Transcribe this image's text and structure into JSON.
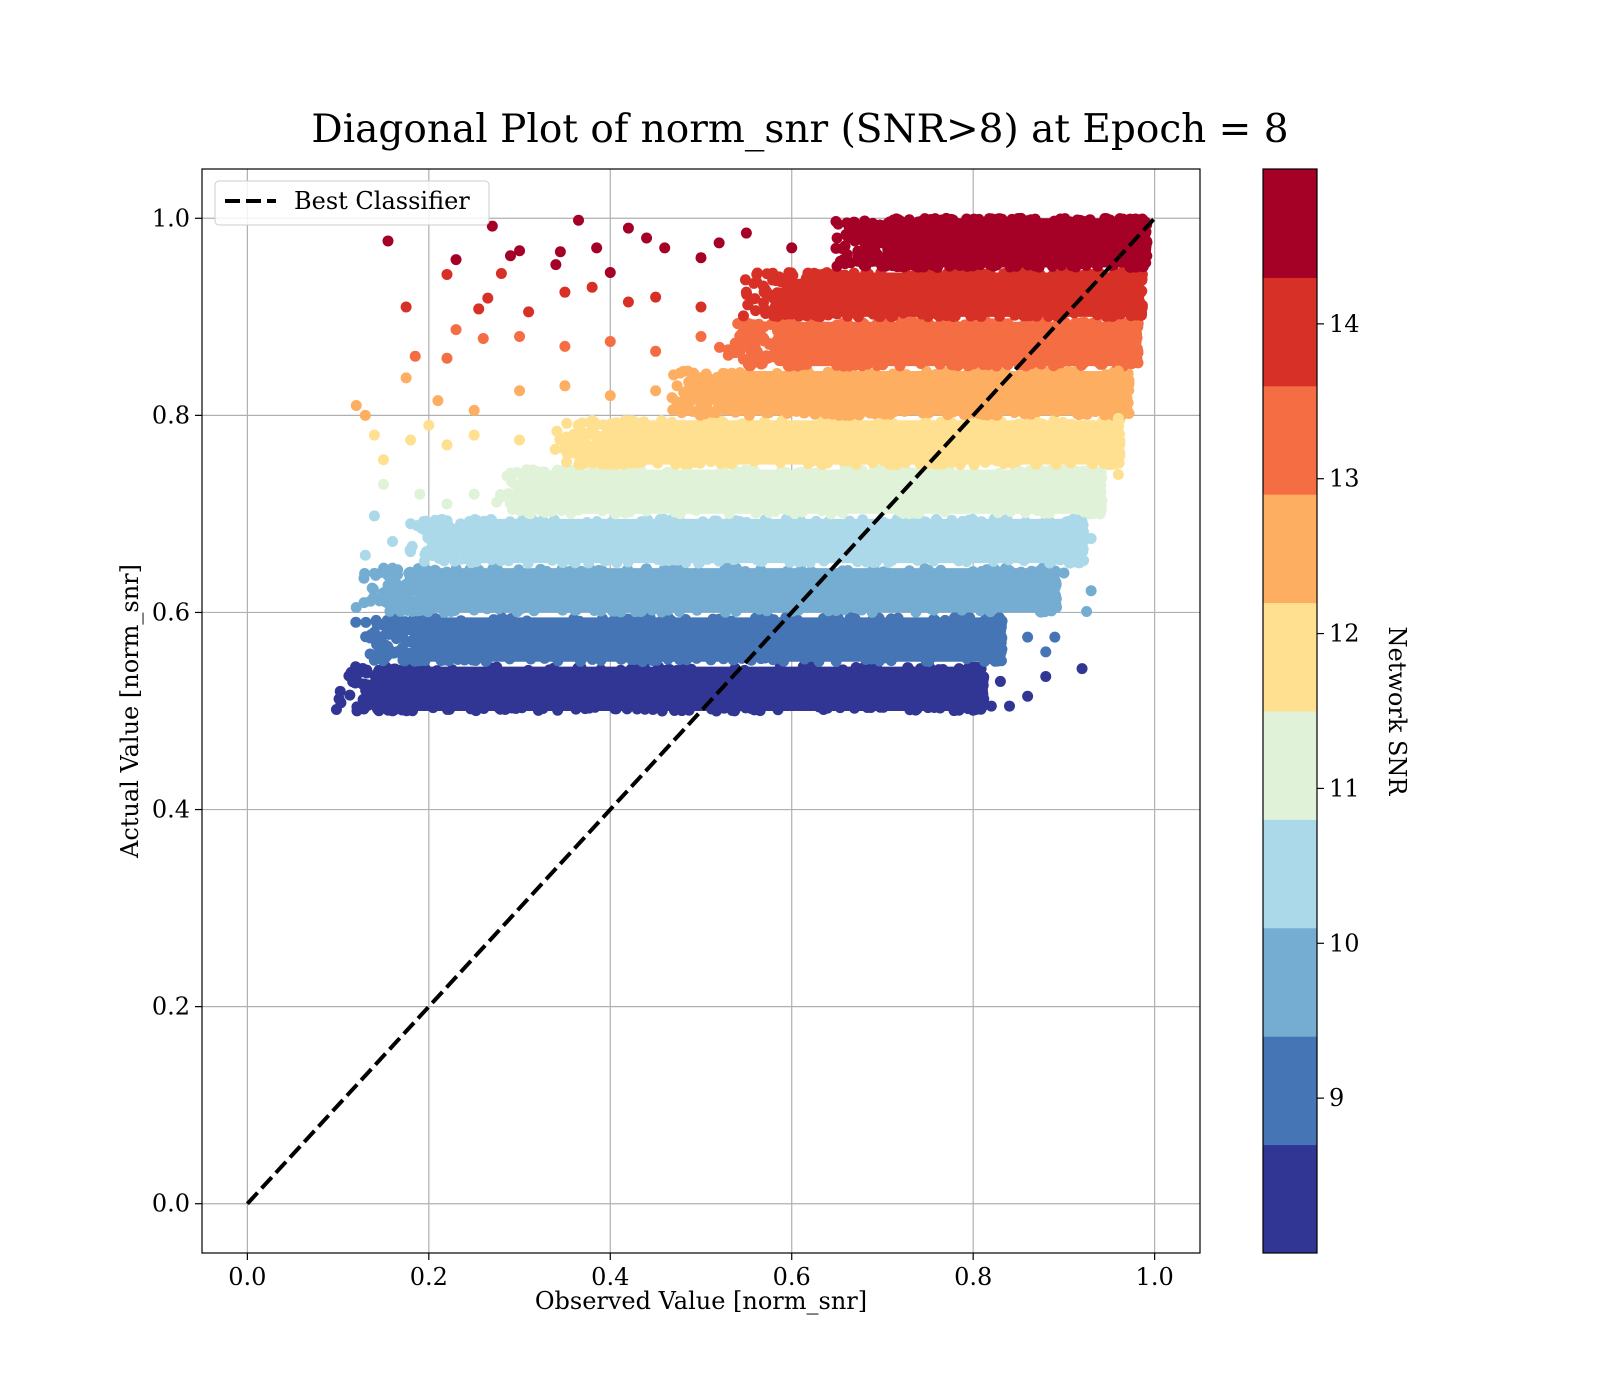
{
  "chart_data": {
    "type": "scatter",
    "title": "Diagonal Plot of norm_snr (SNR>8) at Epoch = 8",
    "xlabel": "Observed Value [norm_snr]",
    "ylabel": "Actual Value [norm_snr]",
    "xlim": [
      -0.05,
      1.05
    ],
    "ylim": [
      -0.05,
      1.05
    ],
    "x_ticks": [
      "0.0",
      "0.2",
      "0.4",
      "0.6",
      "0.8",
      "1.0"
    ],
    "y_ticks": [
      "0.0",
      "0.2",
      "0.4",
      "0.6",
      "0.8",
      "1.0"
    ],
    "grid": true,
    "legend": {
      "placement": "upper-left",
      "entries": [
        "Best Classifier"
      ]
    },
    "reference_line": {
      "name": "Best Classifier",
      "x": [
        0.0,
        1.0
      ],
      "y": [
        0.0,
        1.0
      ],
      "style": "dashed",
      "color": "#000000"
    },
    "colorbar": {
      "label": "Network SNR",
      "range": [
        8,
        15
      ],
      "tick_labels": [
        "9",
        "10",
        "11",
        "12",
        "13",
        "14"
      ],
      "tick_values": [
        9,
        10,
        11,
        12,
        13,
        14
      ],
      "bins": [
        {
          "snr_min": 8.0,
          "snr_max": 8.7,
          "color": "#313695"
        },
        {
          "snr_min": 8.7,
          "snr_max": 9.4,
          "color": "#4575b4"
        },
        {
          "snr_min": 9.4,
          "snr_max": 10.1,
          "color": "#74add1"
        },
        {
          "snr_min": 10.1,
          "snr_max": 10.8,
          "color": "#abd9e9"
        },
        {
          "snr_min": 10.8,
          "snr_max": 11.5,
          "color": "#e0f3d8"
        },
        {
          "snr_min": 11.5,
          "snr_max": 12.2,
          "color": "#fee090"
        },
        {
          "snr_min": 12.2,
          "snr_max": 12.9,
          "color": "#fdae61"
        },
        {
          "snr_min": 12.9,
          "snr_max": 13.6,
          "color": "#f46d43"
        },
        {
          "snr_min": 13.6,
          "snr_max": 14.3,
          "color": "#d73027"
        },
        {
          "snr_min": 14.3,
          "snr_max": 15.0,
          "color": "#a50026"
        }
      ]
    },
    "series": [
      {
        "color_band": "actual 0.50–0.55 (SNR 8.0–8.7)",
        "color": "#313695",
        "points": [
          [
            0.12,
            0.535
          ],
          [
            0.13,
            0.508
          ],
          [
            0.14,
            0.52
          ],
          [
            0.16,
            0.53
          ],
          [
            0.18,
            0.51
          ],
          [
            0.2,
            0.525
          ],
          [
            0.25,
            0.515
          ],
          [
            0.3,
            0.52
          ],
          [
            0.35,
            0.51
          ],
          [
            0.4,
            0.525
          ],
          [
            0.45,
            0.52
          ],
          [
            0.5,
            0.515
          ],
          [
            0.55,
            0.52
          ],
          [
            0.6,
            0.51
          ],
          [
            0.65,
            0.525
          ],
          [
            0.7,
            0.52
          ],
          [
            0.75,
            0.51
          ],
          [
            0.8,
            0.52
          ],
          [
            0.82,
            0.505
          ],
          [
            0.83,
            0.53
          ],
          [
            0.84,
            0.505
          ],
          [
            0.86,
            0.515
          ],
          [
            0.88,
            0.535
          ],
          [
            0.92,
            0.543
          ]
        ]
      },
      {
        "color_band": "actual 0.55–0.60 (SNR 8.7–9.4)",
        "color": "#4575b4",
        "points": [
          [
            0.14,
            0.58
          ],
          [
            0.15,
            0.56
          ],
          [
            0.17,
            0.59
          ],
          [
            0.2,
            0.57
          ],
          [
            0.25,
            0.575
          ],
          [
            0.3,
            0.565
          ],
          [
            0.35,
            0.58
          ],
          [
            0.4,
            0.57
          ],
          [
            0.45,
            0.575
          ],
          [
            0.5,
            0.565
          ],
          [
            0.55,
            0.58
          ],
          [
            0.6,
            0.57
          ],
          [
            0.65,
            0.575
          ],
          [
            0.7,
            0.565
          ],
          [
            0.75,
            0.58
          ],
          [
            0.8,
            0.57
          ],
          [
            0.83,
            0.565
          ],
          [
            0.86,
            0.575
          ],
          [
            0.88,
            0.56
          ],
          [
            0.89,
            0.575
          ]
        ]
      },
      {
        "color_band": "actual 0.60–0.65 (SNR 9.4–10.1)",
        "color": "#74add1",
        "points": [
          [
            0.12,
            0.605
          ],
          [
            0.15,
            0.62
          ],
          [
            0.16,
            0.645
          ],
          [
            0.2,
            0.63
          ],
          [
            0.25,
            0.62
          ],
          [
            0.3,
            0.625
          ],
          [
            0.35,
            0.63
          ],
          [
            0.4,
            0.62
          ],
          [
            0.45,
            0.625
          ],
          [
            0.5,
            0.615
          ],
          [
            0.55,
            0.63
          ],
          [
            0.6,
            0.62
          ],
          [
            0.65,
            0.625
          ],
          [
            0.7,
            0.615
          ],
          [
            0.75,
            0.63
          ],
          [
            0.8,
            0.62
          ],
          [
            0.85,
            0.625
          ],
          [
            0.88,
            0.63
          ],
          [
            0.9,
            0.64
          ],
          [
            0.93,
            0.622
          ],
          [
            0.925,
            0.601
          ]
        ]
      },
      {
        "color_band": "actual 0.65–0.70 (SNR 10.1–10.8)",
        "color": "#abd9e9",
        "points": [
          [
            0.13,
            0.658
          ],
          [
            0.14,
            0.698
          ],
          [
            0.16,
            0.672
          ],
          [
            0.18,
            0.69
          ],
          [
            0.2,
            0.675
          ],
          [
            0.25,
            0.67
          ],
          [
            0.3,
            0.68
          ],
          [
            0.35,
            0.67
          ],
          [
            0.4,
            0.675
          ],
          [
            0.45,
            0.665
          ],
          [
            0.5,
            0.68
          ],
          [
            0.55,
            0.67
          ],
          [
            0.6,
            0.675
          ],
          [
            0.65,
            0.665
          ],
          [
            0.7,
            0.68
          ],
          [
            0.75,
            0.67
          ],
          [
            0.8,
            0.675
          ],
          [
            0.85,
            0.665
          ],
          [
            0.9,
            0.68
          ],
          [
            0.93,
            0.675
          ]
        ]
      },
      {
        "color_band": "actual 0.70–0.75 (SNR 10.8–11.5)",
        "color": "#e0f3d8",
        "points": [
          [
            0.15,
            0.73
          ],
          [
            0.19,
            0.72
          ],
          [
            0.22,
            0.71
          ],
          [
            0.25,
            0.72
          ],
          [
            0.3,
            0.725
          ],
          [
            0.35,
            0.715
          ],
          [
            0.4,
            0.73
          ],
          [
            0.45,
            0.72
          ],
          [
            0.5,
            0.725
          ],
          [
            0.55,
            0.715
          ],
          [
            0.6,
            0.73
          ],
          [
            0.65,
            0.72
          ],
          [
            0.7,
            0.725
          ],
          [
            0.75,
            0.715
          ],
          [
            0.8,
            0.73
          ],
          [
            0.85,
            0.72
          ],
          [
            0.9,
            0.725
          ],
          [
            0.93,
            0.715
          ],
          [
            0.94,
            0.7
          ]
        ]
      },
      {
        "color_band": "actual 0.75–0.80 (SNR 11.5–12.2)",
        "color": "#fee090",
        "points": [
          [
            0.14,
            0.78
          ],
          [
            0.15,
            0.755
          ],
          [
            0.18,
            0.775
          ],
          [
            0.2,
            0.79
          ],
          [
            0.22,
            0.77
          ],
          [
            0.25,
            0.78
          ],
          [
            0.3,
            0.775
          ],
          [
            0.35,
            0.765
          ],
          [
            0.4,
            0.78
          ],
          [
            0.45,
            0.77
          ],
          [
            0.5,
            0.775
          ],
          [
            0.55,
            0.765
          ],
          [
            0.6,
            0.78
          ],
          [
            0.65,
            0.77
          ],
          [
            0.7,
            0.775
          ],
          [
            0.75,
            0.765
          ],
          [
            0.8,
            0.78
          ],
          [
            0.85,
            0.77
          ],
          [
            0.9,
            0.775
          ],
          [
            0.95,
            0.75
          ],
          [
            0.96,
            0.74
          ],
          [
            0.96,
            0.797
          ]
        ]
      },
      {
        "color_band": "actual 0.80–0.85 (SNR 12.2–12.9)",
        "color": "#fdae61",
        "points": [
          [
            0.12,
            0.81
          ],
          [
            0.13,
            0.8
          ],
          [
            0.175,
            0.838
          ],
          [
            0.21,
            0.815
          ],
          [
            0.25,
            0.805
          ],
          [
            0.3,
            0.825
          ],
          [
            0.35,
            0.83
          ],
          [
            0.4,
            0.82
          ],
          [
            0.45,
            0.825
          ],
          [
            0.5,
            0.815
          ],
          [
            0.55,
            0.83
          ],
          [
            0.6,
            0.82
          ],
          [
            0.65,
            0.825
          ],
          [
            0.7,
            0.815
          ],
          [
            0.75,
            0.83
          ],
          [
            0.8,
            0.82
          ],
          [
            0.85,
            0.825
          ],
          [
            0.9,
            0.815
          ],
          [
            0.95,
            0.83
          ],
          [
            0.96,
            0.845
          ]
        ]
      },
      {
        "color_band": "actual 0.85–0.90 (SNR 12.9–13.6)",
        "color": "#f46d43",
        "points": [
          [
            0.185,
            0.86
          ],
          [
            0.22,
            0.858
          ],
          [
            0.23,
            0.887
          ],
          [
            0.26,
            0.878
          ],
          [
            0.3,
            0.88
          ],
          [
            0.35,
            0.87
          ],
          [
            0.4,
            0.875
          ],
          [
            0.45,
            0.865
          ],
          [
            0.5,
            0.88
          ],
          [
            0.55,
            0.87
          ],
          [
            0.6,
            0.875
          ],
          [
            0.65,
            0.865
          ],
          [
            0.7,
            0.88
          ],
          [
            0.75,
            0.87
          ],
          [
            0.8,
            0.875
          ],
          [
            0.85,
            0.865
          ],
          [
            0.9,
            0.88
          ],
          [
            0.95,
            0.87
          ],
          [
            0.97,
            0.87
          ]
        ]
      },
      {
        "color_band": "actual 0.90–0.95 (SNR 13.6–14.3)",
        "color": "#d73027",
        "points": [
          [
            0.175,
            0.91
          ],
          [
            0.22,
            0.943
          ],
          [
            0.255,
            0.908
          ],
          [
            0.265,
            0.919
          ],
          [
            0.28,
            0.944
          ],
          [
            0.31,
            0.905
          ],
          [
            0.35,
            0.925
          ],
          [
            0.38,
            0.93
          ],
          [
            0.42,
            0.915
          ],
          [
            0.45,
            0.92
          ],
          [
            0.5,
            0.91
          ],
          [
            0.55,
            0.925
          ],
          [
            0.6,
            0.92
          ],
          [
            0.65,
            0.91
          ],
          [
            0.7,
            0.925
          ],
          [
            0.75,
            0.92
          ],
          [
            0.8,
            0.915
          ],
          [
            0.85,
            0.925
          ],
          [
            0.9,
            0.92
          ],
          [
            0.95,
            0.91
          ],
          [
            0.975,
            0.93
          ]
        ]
      },
      {
        "color_band": "actual 0.95–1.00 (SNR 14.3–15.0)",
        "color": "#a50026",
        "points": [
          [
            0.155,
            0.977
          ],
          [
            0.23,
            0.958
          ],
          [
            0.27,
            0.992
          ],
          [
            0.29,
            0.962
          ],
          [
            0.3,
            0.967
          ],
          [
            0.34,
            0.953
          ],
          [
            0.345,
            0.966
          ],
          [
            0.365,
            0.998
          ],
          [
            0.385,
            0.97
          ],
          [
            0.4,
            0.945
          ],
          [
            0.42,
            0.99
          ],
          [
            0.44,
            0.98
          ],
          [
            0.46,
            0.97
          ],
          [
            0.5,
            0.96
          ],
          [
            0.52,
            0.975
          ],
          [
            0.55,
            0.985
          ],
          [
            0.6,
            0.97
          ],
          [
            0.65,
            0.98
          ],
          [
            0.7,
            0.975
          ],
          [
            0.75,
            0.985
          ],
          [
            0.8,
            0.97
          ],
          [
            0.85,
            0.98
          ],
          [
            0.9,
            0.99
          ],
          [
            0.95,
            0.985
          ],
          [
            0.98,
            0.995
          ]
        ]
      }
    ],
    "dense_regions": [
      {
        "color": "#313695",
        "x_min": 0.16,
        "x_max": 0.8,
        "y_min": 0.5,
        "y_max": 0.545
      },
      {
        "color": "#4575b4",
        "x_min": 0.18,
        "x_max": 0.82,
        "y_min": 0.55,
        "y_max": 0.595
      },
      {
        "color": "#74add1",
        "x_min": 0.19,
        "x_max": 0.88,
        "y_min": 0.6,
        "y_max": 0.645
      },
      {
        "color": "#abd9e9",
        "x_min": 0.24,
        "x_max": 0.91,
        "y_min": 0.65,
        "y_max": 0.695
      },
      {
        "color": "#e0f3d8",
        "x_min": 0.33,
        "x_max": 0.93,
        "y_min": 0.7,
        "y_max": 0.745
      },
      {
        "color": "#fee090",
        "x_min": 0.4,
        "x_max": 0.95,
        "y_min": 0.75,
        "y_max": 0.795
      },
      {
        "color": "#fdae61",
        "x_min": 0.52,
        "x_max": 0.96,
        "y_min": 0.8,
        "y_max": 0.845
      },
      {
        "color": "#f46d43",
        "x_min": 0.58,
        "x_max": 0.97,
        "y_min": 0.85,
        "y_max": 0.895
      },
      {
        "color": "#d73027",
        "x_min": 0.61,
        "x_max": 0.975,
        "y_min": 0.9,
        "y_max": 0.945
      },
      {
        "color": "#a50026",
        "x_min": 0.7,
        "x_max": 0.98,
        "y_min": 0.95,
        "y_max": 1.0
      }
    ]
  }
}
